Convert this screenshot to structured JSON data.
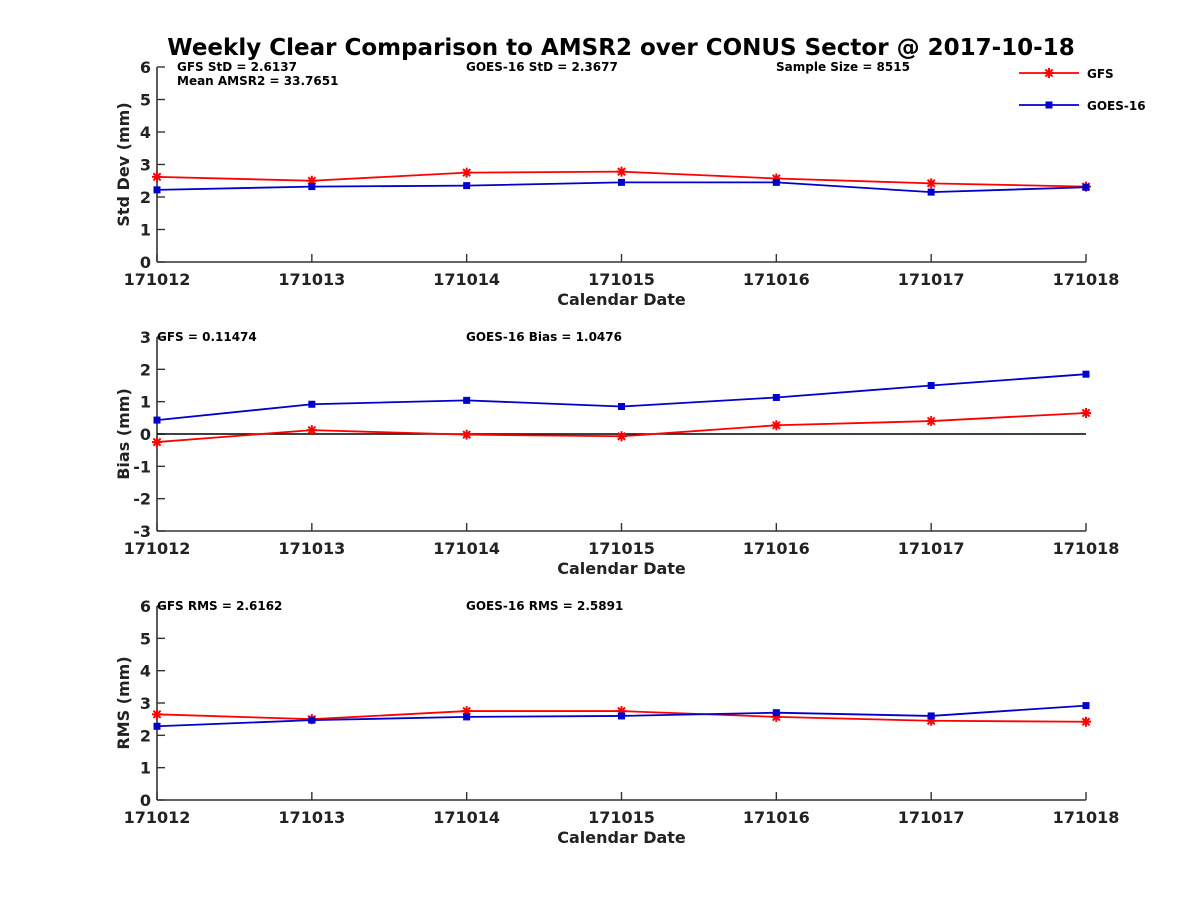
{
  "chart_data": {
    "type": "line",
    "title": "Weekly Clear Comparison to AMSR2 over CONUS Sector @ 2017-10-18",
    "x_categories": [
      "171012",
      "171013",
      "171014",
      "171015",
      "171016",
      "171017",
      "171018"
    ],
    "legend": {
      "placement": "top-right",
      "entries": [
        {
          "name": "GFS",
          "color": "#ff0000",
          "marker": "asterisk"
        },
        {
          "name": "GOES-16",
          "color": "#0000cc",
          "marker": "square"
        }
      ]
    },
    "panels": [
      {
        "id": "stddev",
        "ylabel": "Std Dev (mm)",
        "xlabel": "Calendar Date",
        "ylim": [
          0,
          6
        ],
        "yticks": [
          0,
          1,
          2,
          3,
          4,
          5,
          6
        ],
        "zero_line": false,
        "annotations": [
          {
            "text": "GFS StD = 2.6137",
            "anchor": "left"
          },
          {
            "text": "Mean AMSR2 = 33.7651",
            "anchor": "left-second-line"
          },
          {
            "text": "GOES-16 StD = 2.3677",
            "anchor": "center"
          },
          {
            "text": "Sample Size = 8515",
            "anchor": "right"
          }
        ],
        "series": [
          {
            "name": "GFS",
            "values": [
              2.62,
              2.5,
              2.75,
              2.78,
              2.57,
              2.42,
              2.32
            ]
          },
          {
            "name": "GOES-16",
            "values": [
              2.22,
              2.32,
              2.35,
              2.45,
              2.45,
              2.15,
              2.3
            ]
          }
        ]
      },
      {
        "id": "bias",
        "ylabel": "Bias (mm)",
        "xlabel": "Calendar Date",
        "ylim": [
          -3,
          3
        ],
        "yticks": [
          -3,
          -2,
          -1,
          0,
          1,
          2,
          3
        ],
        "zero_line": true,
        "annotations": [
          {
            "text": "GFS = 0.11474",
            "anchor": "left"
          },
          {
            "text": "GOES-16 Bias  = 1.0476",
            "anchor": "center"
          }
        ],
        "series": [
          {
            "name": "GFS",
            "values": [
              -0.25,
              0.12,
              -0.02,
              -0.07,
              0.27,
              0.4,
              0.65
            ]
          },
          {
            "name": "GOES-16",
            "values": [
              0.43,
              0.92,
              1.04,
              0.85,
              1.13,
              1.5,
              1.85
            ]
          }
        ]
      },
      {
        "id": "rms",
        "ylabel": "RMS (mm)",
        "xlabel": "Calendar Date",
        "ylim": [
          0,
          6
        ],
        "yticks": [
          0,
          1,
          2,
          3,
          4,
          5,
          6
        ],
        "zero_line": false,
        "annotations": [
          {
            "text": "GFS RMS = 2.6162",
            "anchor": "left"
          },
          {
            "text": "GOES-16 RMS = 2.5891",
            "anchor": "center"
          }
        ],
        "series": [
          {
            "name": "GFS",
            "values": [
              2.65,
              2.5,
              2.75,
              2.75,
              2.57,
              2.45,
              2.42
            ]
          },
          {
            "name": "GOES-16",
            "values": [
              2.28,
              2.47,
              2.57,
              2.6,
              2.7,
              2.6,
              2.92
            ]
          }
        ]
      }
    ]
  }
}
